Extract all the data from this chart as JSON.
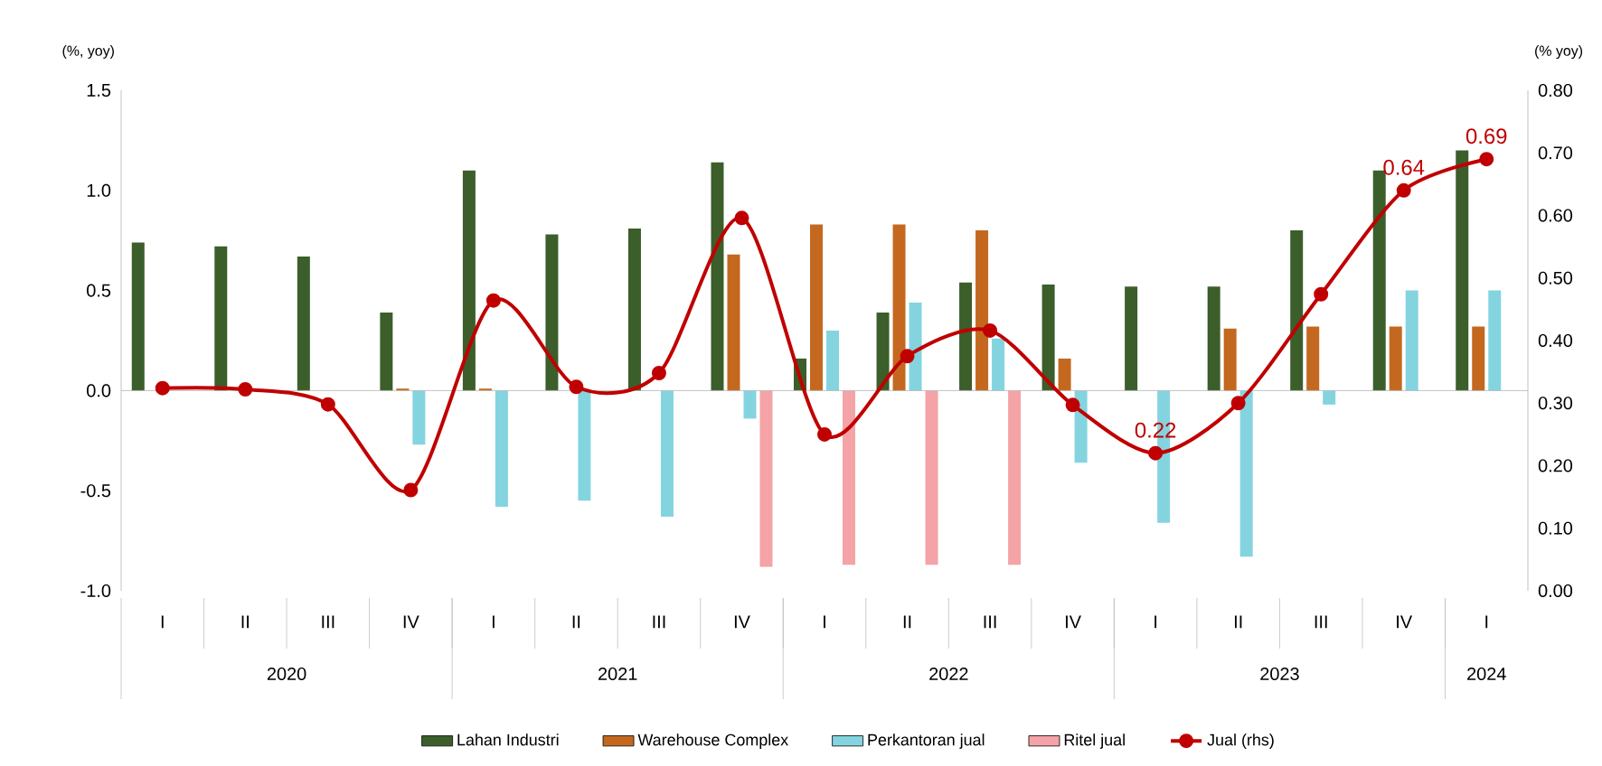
{
  "chart_data": {
    "type": "bar",
    "categories": [
      "I",
      "II",
      "III",
      "IV",
      "I",
      "II",
      "III",
      "IV",
      "I",
      "II",
      "III",
      "IV",
      "I",
      "II",
      "III",
      "IV",
      "I"
    ],
    "annotations": [
      "2020",
      "2021",
      "2022",
      "2023",
      "2024"
    ],
    "ylabel": "(%, yoy)",
    "y2label": "(% yoy)",
    "ylim": [
      -1.0,
      1.5
    ],
    "yticks": [
      {
        "value": -1.0,
        "label": "-1.0"
      },
      -0.5,
      {
        "value": 0.0,
        "label": "0.0"
      },
      0.5,
      {
        "value": 1.0,
        "label": "1.0"
      },
      1.5
    ],
    "y2lim": [
      0.0,
      0.8
    ],
    "y2ticks": [
      {
        "value": 0.0,
        "label": "0.00"
      },
      {
        "value": 0.1,
        "label": "0.10"
      },
      {
        "value": 0.2,
        "label": "0.20"
      },
      {
        "value": 0.3,
        "label": "0.30"
      },
      {
        "value": 0.4,
        "label": "0.40"
      },
      {
        "value": 0.5,
        "label": "0.50"
      },
      {
        "value": 0.6,
        "label": "0.60"
      },
      {
        "value": 0.7,
        "label": "0.70"
      },
      {
        "value": 0.8,
        "label": "0.80"
      }
    ],
    "legend": "bottom",
    "series": [
      {
        "name": "Lahan Industri",
        "color": "#3b5e2b",
        "values": [
          0.74,
          0.72,
          0.67,
          0.39,
          1.1,
          0.78,
          0.81,
          1.14,
          0.16,
          0.39,
          0.54,
          0.53,
          0.52,
          0.52,
          0.8,
          1.1,
          1.2
        ]
      },
      {
        "name": "Warehouse Complex",
        "color": "#c4681f",
        "values": [
          null,
          null,
          null,
          0.01,
          0.01,
          null,
          null,
          0.68,
          0.83,
          0.83,
          0.8,
          0.16,
          null,
          0.31,
          0.32,
          0.32,
          0.32
        ]
      },
      {
        "name": "Perkantoran jual",
        "color": "#84d4e0",
        "values": [
          null,
          null,
          null,
          -0.27,
          -0.58,
          -0.55,
          -0.63,
          -0.14,
          0.3,
          0.44,
          0.26,
          -0.36,
          -0.66,
          -0.83,
          -0.07,
          0.5,
          0.5
        ]
      },
      {
        "name": "Ritel jual",
        "color": "#f4a3a6",
        "values": [
          null,
          null,
          null,
          null,
          null,
          null,
          null,
          -0.88,
          -0.87,
          -0.87,
          -0.87,
          null,
          null,
          null,
          null,
          null,
          null
        ]
      },
      {
        "name": "Jual (rhs)",
        "color": "#c00000",
        "type": "line",
        "axis": "y2",
        "marker": "circle",
        "values": [
          0.324,
          0.322,
          0.298,
          0.161,
          0.464,
          0.326,
          0.348,
          0.596,
          0.25,
          0.375,
          0.416,
          0.297,
          0.22,
          0.3,
          0.474,
          0.64,
          0.69
        ],
        "value_labels": [
          null,
          null,
          null,
          null,
          null,
          null,
          null,
          null,
          null,
          null,
          null,
          null,
          "0.22",
          null,
          null,
          "0.64",
          "0.69"
        ]
      }
    ]
  }
}
